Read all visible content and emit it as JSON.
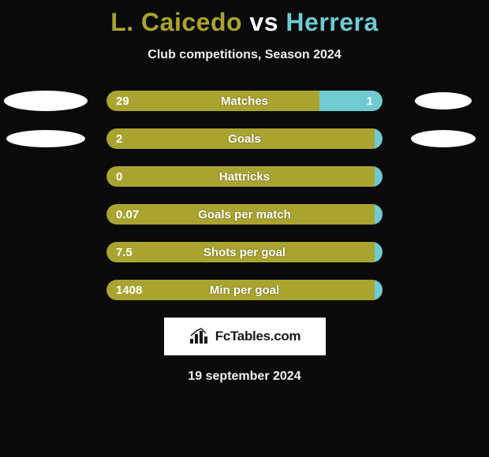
{
  "title": {
    "player1": "L. Caicedo",
    "vs": " vs ",
    "player2": "Herrera",
    "player1_color": "#a9a42f",
    "player2_color": "#6fcad1"
  },
  "subtitle": "Club competitions, Season 2024",
  "bar_track_bg": "#2a2a2a",
  "left_color": "#a9a42f",
  "right_color": "#6fcad1",
  "rows": [
    {
      "label": "Matches",
      "left_value": "29",
      "right_value": "1",
      "left_pct": 77,
      "right_pct": 23,
      "show_right_value": true,
      "left_ellipse": {
        "w": 106,
        "h": 26
      },
      "right_ellipse": {
        "w": 72,
        "h": 22
      }
    },
    {
      "label": "Goals",
      "left_value": "2",
      "right_value": "",
      "left_pct": 97,
      "right_pct": 3,
      "show_right_value": false,
      "left_ellipse": {
        "w": 100,
        "h": 22
      },
      "right_ellipse": {
        "w": 82,
        "h": 22
      }
    },
    {
      "label": "Hattricks",
      "left_value": "0",
      "right_value": "",
      "left_pct": 97,
      "right_pct": 3,
      "show_right_value": false,
      "left_ellipse": null,
      "right_ellipse": null
    },
    {
      "label": "Goals per match",
      "left_value": "0.07",
      "right_value": "",
      "left_pct": 97,
      "right_pct": 3,
      "show_right_value": false,
      "left_ellipse": null,
      "right_ellipse": null
    },
    {
      "label": "Shots per goal",
      "left_value": "7.5",
      "right_value": "",
      "left_pct": 97,
      "right_pct": 3,
      "show_right_value": false,
      "left_ellipse": null,
      "right_ellipse": null
    },
    {
      "label": "Min per goal",
      "left_value": "1408",
      "right_value": "",
      "left_pct": 97,
      "right_pct": 3,
      "show_right_value": false,
      "left_ellipse": null,
      "right_ellipse": null
    }
  ],
  "logo_text": "FcTables.com",
  "date": "19 september 2024",
  "background_color": "#0a0a0a"
}
